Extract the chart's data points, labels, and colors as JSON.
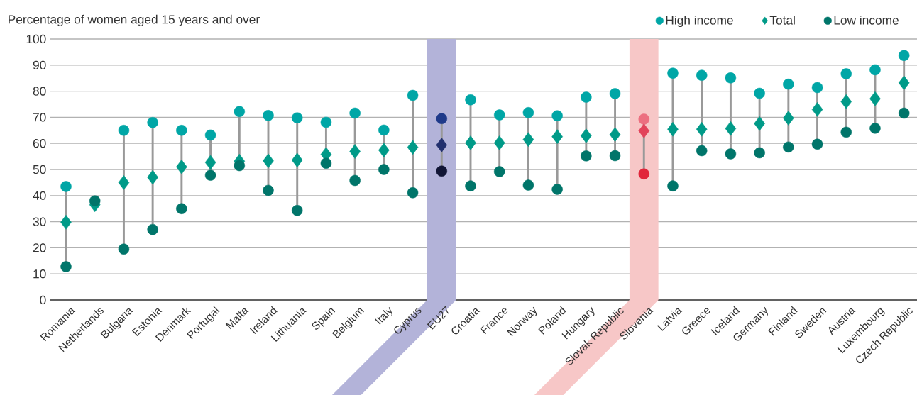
{
  "chart_data": {
    "type": "scatter",
    "ylabel": "Percentage of women aged 15 years and over",
    "categories": [
      "Romania",
      "Netherlands",
      "Bulgaria",
      "Estonia",
      "Denmark",
      "Portugal",
      "Malta",
      "Ireland",
      "Lithuania",
      "Spain",
      "Belgium",
      "Italy",
      "Cyprus",
      "EU27",
      "Croatia",
      "France",
      "Norway",
      "Poland",
      "Hungary",
      "Slovak Republic",
      "Slovenia",
      "Latvia",
      "Greece",
      "Iceland",
      "Germany",
      "Finland",
      "Sweden",
      "Austria",
      "Luxembourg",
      "Czech Republic"
    ],
    "series": [
      {
        "name": "High income",
        "color": "#00a6a6",
        "marker": "circle",
        "values": [
          43.5,
          null,
          65,
          68,
          65,
          63.2,
          72.2,
          70.7,
          69.8,
          68.1,
          71.6,
          65.1,
          78.4,
          69.5,
          76.7,
          70.9,
          71.8,
          70.6,
          77.7,
          79.1,
          69.3,
          86.9,
          86.1,
          85.1,
          79.2,
          82.7,
          81.4,
          86.7,
          88.2,
          93.7
        ],
        "colors": [
          "#00a6a6",
          "#00a6a6",
          "#00a6a6",
          "#00a6a6",
          "#00a6a6",
          "#00a6a6",
          "#00a6a6",
          "#00a6a6",
          "#00a6a6",
          "#00a6a6",
          "#00a6a6",
          "#00a6a6",
          "#00a6a6",
          "#1f3a8a",
          "#00a6a6",
          "#00a6a6",
          "#00a6a6",
          "#00a6a6",
          "#00a6a6",
          "#00a6a6",
          "#ec6f80",
          "#00a6a6",
          "#00a6a6",
          "#00a6a6",
          "#00a6a6",
          "#00a6a6",
          "#00a6a6",
          "#00a6a6",
          "#00a6a6",
          "#00a6a6"
        ]
      },
      {
        "name": "Total",
        "color": "#009a88",
        "marker": "diamond",
        "values": [
          29.8,
          36.5,
          45,
          47,
          51,
          52.7,
          53.2,
          53.3,
          53.6,
          55.8,
          56.9,
          57.4,
          58.5,
          59.4,
          60.2,
          60.2,
          61.5,
          62.6,
          62.9,
          63.4,
          64.8,
          65.4,
          65.4,
          65.7,
          67.6,
          69.7,
          73.0,
          76.0,
          77.1,
          83.2
        ],
        "colors": [
          "#009a88",
          "#009a88",
          "#009a88",
          "#009a88",
          "#009a88",
          "#009a88",
          "#009a88",
          "#009a88",
          "#009a88",
          "#009a88",
          "#009a88",
          "#009a88",
          "#009a88",
          "#22306e",
          "#009a88",
          "#009a88",
          "#009a88",
          "#009a88",
          "#009a88",
          "#009a88",
          "#e2435a",
          "#009a88",
          "#009a88",
          "#009a88",
          "#009a88",
          "#009a88",
          "#009a88",
          "#009a88",
          "#009a88",
          "#009a88"
        ]
      },
      {
        "name": "Low income",
        "color": "#00756a",
        "marker": "circle",
        "values": [
          12.8,
          38,
          19.5,
          27,
          35,
          47.8,
          51.5,
          42,
          34.3,
          52.4,
          45.8,
          50.0,
          41.1,
          49.4,
          43.7,
          49.2,
          44.0,
          42.4,
          55.2,
          55.3,
          48.3,
          43.7,
          57.2,
          56.0,
          56.4,
          58.6,
          59.7,
          64.3,
          65.8,
          71.6
        ],
        "colors": [
          "#00756a",
          "#00756a",
          "#00756a",
          "#00756a",
          "#00756a",
          "#00756a",
          "#00756a",
          "#00756a",
          "#00756a",
          "#00756a",
          "#00756a",
          "#00756a",
          "#00756a",
          "#111535",
          "#00756a",
          "#00756a",
          "#00756a",
          "#00756a",
          "#00756a",
          "#00756a",
          "#e1253a",
          "#00756a",
          "#00756a",
          "#00756a",
          "#00756a",
          "#00756a",
          "#00756a",
          "#00756a",
          "#00756a",
          "#00756a"
        ]
      }
    ],
    "bands": [
      {
        "axis": "x",
        "from": "EU27",
        "to": "EU27",
        "color": "#b3b3d9"
      },
      {
        "axis": "x",
        "from": "Slovenia",
        "to": "Slovenia",
        "color": "#f7c7c7"
      }
    ],
    "ylim": [
      0,
      100
    ],
    "yticks": [
      0,
      10,
      20,
      30,
      40,
      50,
      60,
      70,
      80,
      90,
      100
    ],
    "grid": "y",
    "legend": "top right"
  }
}
